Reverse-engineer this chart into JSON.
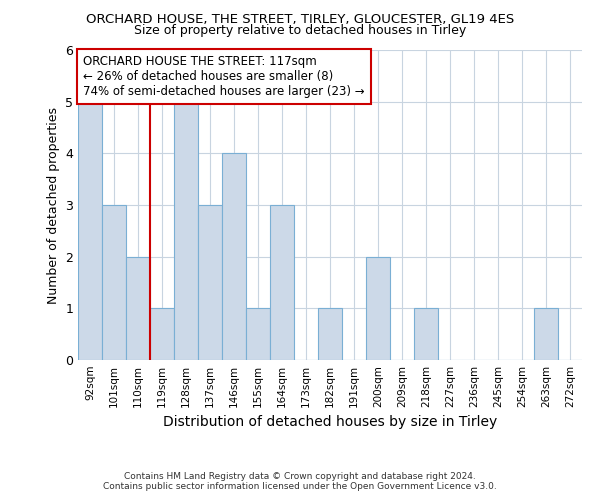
{
  "title1": "ORCHARD HOUSE, THE STREET, TIRLEY, GLOUCESTER, GL19 4ES",
  "title2": "Size of property relative to detached houses in Tirley",
  "xlabel": "Distribution of detached houses by size in Tirley",
  "ylabel": "Number of detached properties",
  "footer1": "Contains HM Land Registry data © Crown copyright and database right 2024.",
  "footer2": "Contains public sector information licensed under the Open Government Licence v3.0.",
  "bin_labels": [
    "92sqm",
    "101sqm",
    "110sqm",
    "119sqm",
    "128sqm",
    "137sqm",
    "146sqm",
    "155sqm",
    "164sqm",
    "173sqm",
    "182sqm",
    "191sqm",
    "200sqm",
    "209sqm",
    "218sqm",
    "227sqm",
    "236sqm",
    "245sqm",
    "254sqm",
    "263sqm",
    "272sqm"
  ],
  "bar_values": [
    5,
    3,
    2,
    1,
    5,
    3,
    4,
    1,
    3,
    0,
    1,
    0,
    2,
    0,
    1,
    0,
    0,
    0,
    0,
    1,
    0
  ],
  "bar_color": "#ccd9e8",
  "bar_edge_color": "#7aafd4",
  "subject_line_index": 3,
  "subject_line_color": "#cc0000",
  "annotation_line1": "ORCHARD HOUSE THE STREET: 117sqm",
  "annotation_line2": "← 26% of detached houses are smaller (8)",
  "annotation_line3": "74% of semi-detached houses are larger (23) →",
  "annotation_box_color": "#ffffff",
  "annotation_box_edge_color": "#cc0000",
  "ylim": [
    0,
    6
  ],
  "yticks": [
    0,
    1,
    2,
    3,
    4,
    5,
    6
  ],
  "background_color": "#ffffff",
  "grid_color": "#c8d4e0"
}
